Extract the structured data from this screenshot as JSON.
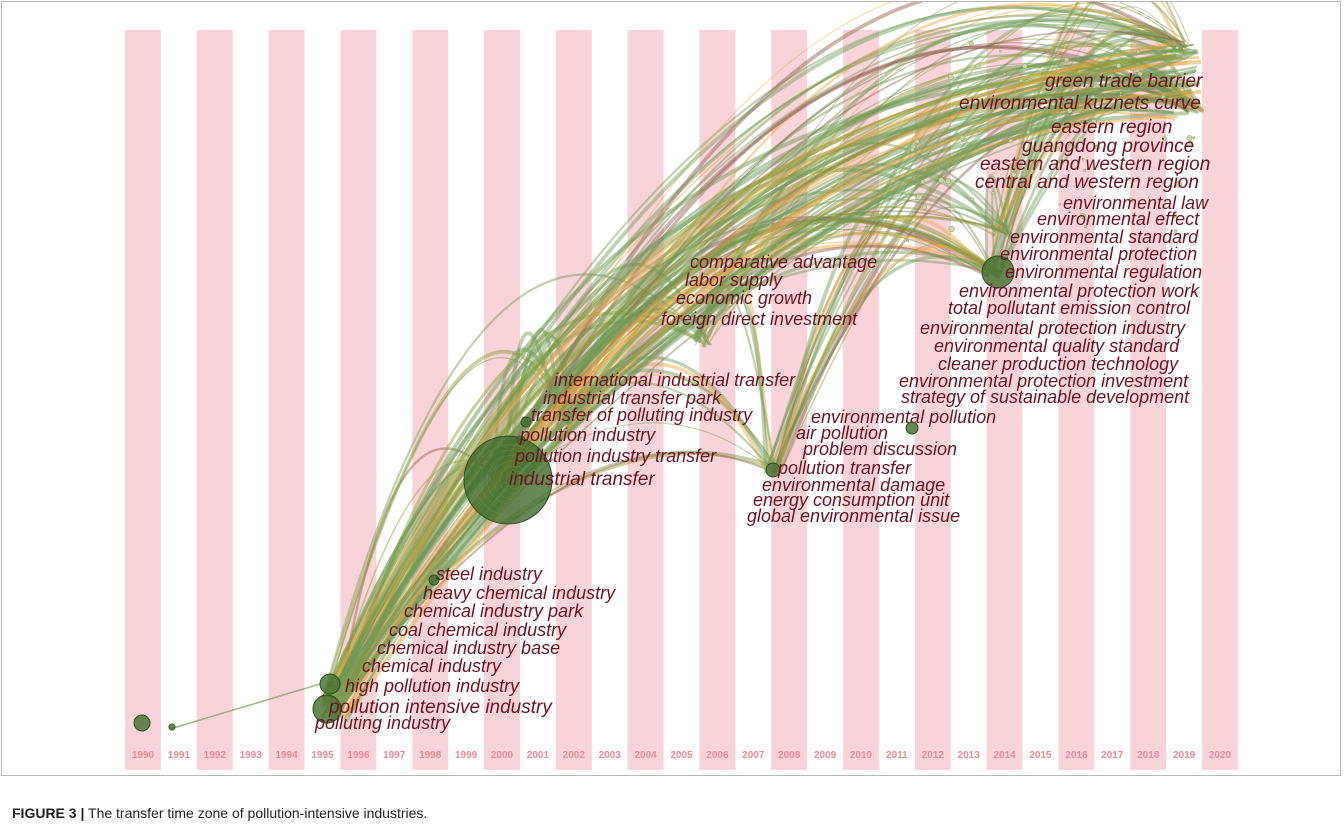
{
  "figure": {
    "caption_label": "FIGURE 3 |",
    "caption_text": "The transfer time zone of pollution-intensive industries."
  },
  "years": [
    "1990",
    "1991",
    "1992",
    "1993",
    "1994",
    "1995",
    "1996",
    "1997",
    "1998",
    "1999",
    "2000",
    "2001",
    "2002",
    "2003",
    "2004",
    "2005",
    "2006",
    "2007",
    "2008",
    "2009",
    "2010",
    "2011",
    "2012",
    "2013",
    "2014",
    "2015",
    "2016",
    "2017",
    "2018",
    "2019",
    "2020"
  ],
  "colors": {
    "stripe": "#f8d4da",
    "label": "#6e1222",
    "year": "#e58a98",
    "node": "#3f6b2c",
    "link_green": "#6f9a55",
    "link_orange": "#e8a640",
    "link_olive": "#8e9a2a",
    "link_brown": "#8a5a4a"
  },
  "nodes": [
    {
      "label": "green trade barrier",
      "year": 2018
    },
    {
      "label": "environmental kuznets curve",
      "year": 2018
    },
    {
      "label": "eastern region",
      "year": 2018
    },
    {
      "label": "guangdong province",
      "year": 2018
    },
    {
      "label": "eastern and western region",
      "year": 2018
    },
    {
      "label": "central and western region",
      "year": 2018
    },
    {
      "label": "environmental law",
      "year": 2014
    },
    {
      "label": "environmental effect",
      "year": 2014
    },
    {
      "label": "environmental standard",
      "year": 2014
    },
    {
      "label": "environmental protection",
      "year": 2014
    },
    {
      "label": "environmental regulation",
      "year": 2014
    },
    {
      "label": "environmental protection work",
      "year": 2014
    },
    {
      "label": "total pollutant emission control",
      "year": 2014
    },
    {
      "label": "environmental protection industry",
      "year": 2014
    },
    {
      "label": "environmental quality standard",
      "year": 2014
    },
    {
      "label": "cleaner production technology",
      "year": 2014
    },
    {
      "label": "environmental protection investment",
      "year": 2014
    },
    {
      "label": "strategy of sustainable development",
      "year": 2014
    },
    {
      "label": "comparative advantage",
      "year": 2006
    },
    {
      "label": "labor supply",
      "year": 2006
    },
    {
      "label": "economic growth",
      "year": 2006
    },
    {
      "label": "foreign direct investment",
      "year": 2006
    },
    {
      "label": "international industrial transfer",
      "year": 2001
    },
    {
      "label": "industrial transfer park",
      "year": 2001
    },
    {
      "label": "transfer of polluting industry",
      "year": 2001
    },
    {
      "label": "environmental pollution",
      "year": 2011
    },
    {
      "label": "pollution industry",
      "year": 2001
    },
    {
      "label": "air pollution",
      "year": 2008
    },
    {
      "label": "problem discussion",
      "year": 2008
    },
    {
      "label": "pollution industry transfer",
      "year": 2001
    },
    {
      "label": "pollution transfer",
      "year": 2008
    },
    {
      "label": "industrial transfer",
      "year": 2000
    },
    {
      "label": "environmental damage",
      "year": 2008
    },
    {
      "label": "energy consumption unit",
      "year": 2008
    },
    {
      "label": "global environmental issue",
      "year": 2008
    },
    {
      "label": "steel industry",
      "year": 1998
    },
    {
      "label": "heavy chemical industry",
      "year": 1998
    },
    {
      "label": "chemical industry park",
      "year": 1998
    },
    {
      "label": "coal chemical industry",
      "year": 1995
    },
    {
      "label": "chemical industry base",
      "year": 1995
    },
    {
      "label": "chemical industry",
      "year": 1995
    },
    {
      "label": "high pollution industry",
      "year": 1995
    },
    {
      "label": "pollution intensive industry",
      "year": 1995
    },
    {
      "label": "polluting industry",
      "year": 1995
    }
  ]
}
